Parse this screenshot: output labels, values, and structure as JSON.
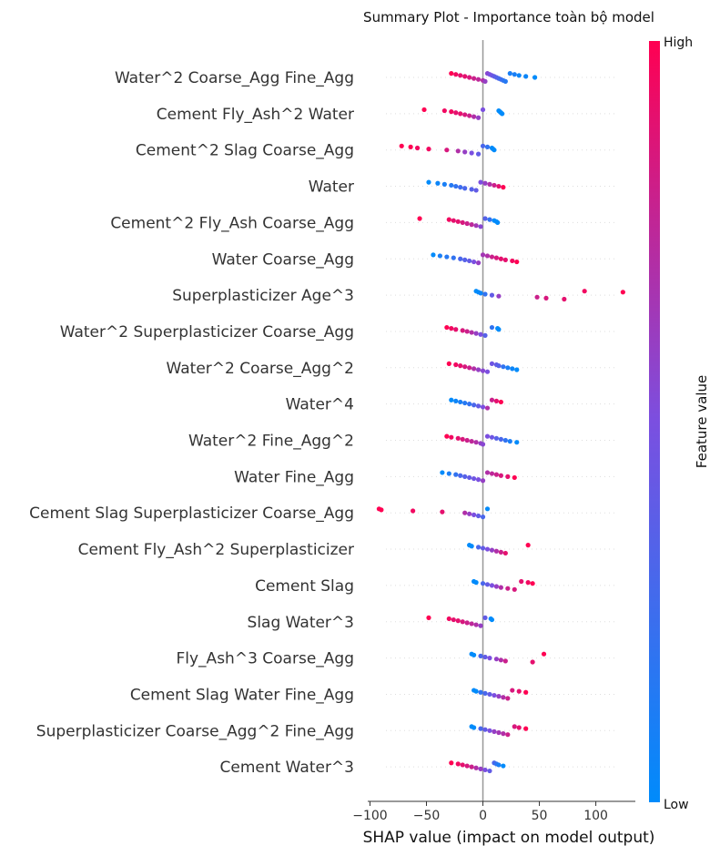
{
  "colors": {
    "high": "#ff0052",
    "low": "#008bfb",
    "mid": "#7b4fe0",
    "zero_line": "#999999",
    "axis": "#333333",
    "guide": "#dddddd"
  },
  "chart_data": {
    "type": "scatter",
    "subtype": "shap-beeswarm-summary",
    "title": "Summary Plot - Importance toàn bộ model",
    "xlabel": "SHAP value (impact on model output)",
    "xlim": [
      -102,
      135
    ],
    "xticks": [
      -100,
      -50,
      0,
      50,
      100
    ],
    "colorbar": {
      "title": "Feature value",
      "high_label": "High",
      "low_label": "Low"
    },
    "features": [
      {
        "name": "Water^2 Coarse_Agg Fine_Agg",
        "points": [
          [
            -28,
            1
          ],
          [
            -24,
            0.95
          ],
          [
            -20,
            0.9
          ],
          [
            -16,
            0.9
          ],
          [
            -12,
            0.85
          ],
          [
            -8,
            0.8
          ],
          [
            -4,
            0.75
          ],
          [
            0,
            0.7
          ],
          [
            2,
            0.6
          ],
          [
            4,
            0.55
          ],
          [
            6,
            0.5
          ],
          [
            8,
            0.45
          ],
          [
            10,
            0.4
          ],
          [
            12,
            0.35
          ],
          [
            14,
            0.3
          ],
          [
            16,
            0.25
          ],
          [
            18,
            0.2
          ],
          [
            20,
            0.15
          ],
          [
            24,
            0.1
          ],
          [
            28,
            0.1
          ],
          [
            32,
            0.05
          ],
          [
            38,
            0.05
          ],
          [
            46,
            0
          ]
        ]
      },
      {
        "name": "Cement Fly_Ash^2 Water",
        "points": [
          [
            -52,
            1
          ],
          [
            -34,
            0.95
          ],
          [
            -28,
            0.95
          ],
          [
            -24,
            0.9
          ],
          [
            -20,
            0.9
          ],
          [
            -16,
            0.85
          ],
          [
            -12,
            0.8
          ],
          [
            -8,
            0.7
          ],
          [
            -4,
            0.6
          ],
          [
            0,
            0.5
          ],
          [
            14,
            0
          ],
          [
            15,
            0
          ],
          [
            16,
            0
          ],
          [
            17,
            0
          ]
        ]
      },
      {
        "name": "Cement^2 Slag Coarse_Agg",
        "points": [
          [
            -72,
            1
          ],
          [
            -64,
            1
          ],
          [
            -58,
            0.95
          ],
          [
            -48,
            0.95
          ],
          [
            -32,
            0.85
          ],
          [
            -22,
            0.7
          ],
          [
            -16,
            0.6
          ],
          [
            -10,
            0.5
          ],
          [
            -4,
            0.4
          ],
          [
            0,
            0.3
          ],
          [
            4,
            0.2
          ],
          [
            8,
            0
          ],
          [
            9,
            0
          ],
          [
            10,
            0
          ]
        ]
      },
      {
        "name": "Water",
        "points": [
          [
            -48,
            0
          ],
          [
            -40,
            0.05
          ],
          [
            -34,
            0.1
          ],
          [
            -28,
            0.15
          ],
          [
            -24,
            0.2
          ],
          [
            -20,
            0.25
          ],
          [
            -16,
            0.3
          ],
          [
            -10,
            0.35
          ],
          [
            -6,
            0.4
          ],
          [
            -2,
            0.5
          ],
          [
            2,
            0.6
          ],
          [
            6,
            0.7
          ],
          [
            10,
            0.8
          ],
          [
            14,
            0.9
          ],
          [
            18,
            1
          ]
        ]
      },
      {
        "name": "Cement^2 Fly_Ash Coarse_Agg",
        "points": [
          [
            -56,
            1
          ],
          [
            -30,
            0.95
          ],
          [
            -26,
            0.9
          ],
          [
            -22,
            0.9
          ],
          [
            -18,
            0.85
          ],
          [
            -14,
            0.8
          ],
          [
            -10,
            0.75
          ],
          [
            -6,
            0.65
          ],
          [
            -2,
            0.55
          ],
          [
            2,
            0.35
          ],
          [
            6,
            0.2
          ],
          [
            10,
            0
          ],
          [
            12,
            0
          ],
          [
            13,
            0
          ]
        ]
      },
      {
        "name": "Water Coarse_Agg",
        "points": [
          [
            -44,
            0
          ],
          [
            -38,
            0.1
          ],
          [
            -32,
            0.15
          ],
          [
            -26,
            0.2
          ],
          [
            -20,
            0.3
          ],
          [
            -16,
            0.35
          ],
          [
            -12,
            0.4
          ],
          [
            -8,
            0.5
          ],
          [
            -4,
            0.6
          ],
          [
            0,
            0.65
          ],
          [
            4,
            0.7
          ],
          [
            8,
            0.8
          ],
          [
            12,
            0.85
          ],
          [
            16,
            0.9
          ],
          [
            20,
            0.9
          ],
          [
            26,
            0.95
          ],
          [
            30,
            1
          ]
        ]
      },
      {
        "name": "Superplasticizer Age^3",
        "points": [
          [
            -6,
            0
          ],
          [
            -4,
            0
          ],
          [
            -2,
            0.05
          ],
          [
            2,
            0.2
          ],
          [
            8,
            0.4
          ],
          [
            14,
            0.6
          ],
          [
            48,
            0.8
          ],
          [
            56,
            0.85
          ],
          [
            72,
            0.9
          ],
          [
            90,
            0.95
          ],
          [
            124,
            1
          ]
        ]
      },
      {
        "name": "Water^2 Superplasticizer Coarse_Agg",
        "points": [
          [
            -32,
            1
          ],
          [
            -28,
            0.95
          ],
          [
            -24,
            0.9
          ],
          [
            -18,
            0.85
          ],
          [
            -14,
            0.8
          ],
          [
            -10,
            0.7
          ],
          [
            -6,
            0.6
          ],
          [
            -2,
            0.5
          ],
          [
            2,
            0.35
          ],
          [
            8,
            0.2
          ],
          [
            13,
            0
          ],
          [
            14,
            0
          ]
        ]
      },
      {
        "name": "Water^2 Coarse_Agg^2",
        "points": [
          [
            -30,
            1
          ],
          [
            -24,
            0.95
          ],
          [
            -20,
            0.9
          ],
          [
            -16,
            0.85
          ],
          [
            -12,
            0.8
          ],
          [
            -8,
            0.7
          ],
          [
            -4,
            0.6
          ],
          [
            0,
            0.55
          ],
          [
            4,
            0.5
          ],
          [
            8,
            0.45
          ],
          [
            12,
            0.4
          ],
          [
            14,
            0.35
          ],
          [
            18,
            0.2
          ],
          [
            22,
            0.1
          ],
          [
            26,
            0.05
          ],
          [
            30,
            0
          ]
        ]
      },
      {
        "name": "Water^4",
        "points": [
          [
            -28,
            0
          ],
          [
            -24,
            0.05
          ],
          [
            -20,
            0.1
          ],
          [
            -16,
            0.15
          ],
          [
            -12,
            0.2
          ],
          [
            -8,
            0.3
          ],
          [
            -4,
            0.4
          ],
          [
            0,
            0.5
          ],
          [
            4,
            0.7
          ],
          [
            8,
            0.8
          ],
          [
            12,
            0.9
          ],
          [
            16,
            1
          ]
        ]
      },
      {
        "name": "Water^2 Fine_Agg^2",
        "points": [
          [
            -32,
            1
          ],
          [
            -28,
            0.95
          ],
          [
            -22,
            0.9
          ],
          [
            -18,
            0.85
          ],
          [
            -14,
            0.8
          ],
          [
            -10,
            0.75
          ],
          [
            -6,
            0.7
          ],
          [
            -2,
            0.6
          ],
          [
            0,
            0.55
          ],
          [
            4,
            0.5
          ],
          [
            8,
            0.45
          ],
          [
            12,
            0.35
          ],
          [
            16,
            0.3
          ],
          [
            20,
            0.2
          ],
          [
            24,
            0.1
          ],
          [
            30,
            0
          ]
        ]
      },
      {
        "name": "Water Fine_Agg",
        "points": [
          [
            -36,
            0
          ],
          [
            -30,
            0.1
          ],
          [
            -24,
            0.2
          ],
          [
            -20,
            0.3
          ],
          [
            -16,
            0.35
          ],
          [
            -12,
            0.4
          ],
          [
            -8,
            0.45
          ],
          [
            -4,
            0.5
          ],
          [
            0,
            0.6
          ],
          [
            4,
            0.7
          ],
          [
            8,
            0.75
          ],
          [
            12,
            0.8
          ],
          [
            16,
            0.85
          ],
          [
            22,
            0.9
          ],
          [
            28,
            1
          ]
        ]
      },
      {
        "name": "Cement Slag Superplasticizer Coarse_Agg",
        "points": [
          [
            -92,
            1
          ],
          [
            -90,
            1
          ],
          [
            -62,
            0.95
          ],
          [
            -36,
            0.9
          ],
          [
            -16,
            0.7
          ],
          [
            -12,
            0.6
          ],
          [
            -8,
            0.5
          ],
          [
            -4,
            0.4
          ],
          [
            0,
            0.3
          ],
          [
            4,
            0
          ]
        ]
      },
      {
        "name": "Cement Fly_Ash^2 Superplasticizer",
        "points": [
          [
            -12,
            0
          ],
          [
            -10,
            0
          ],
          [
            -4,
            0.3
          ],
          [
            0,
            0.4
          ],
          [
            4,
            0.5
          ],
          [
            8,
            0.6
          ],
          [
            12,
            0.7
          ],
          [
            16,
            0.8
          ],
          [
            20,
            0.9
          ],
          [
            40,
            1
          ]
        ]
      },
      {
        "name": "Cement Slag",
        "points": [
          [
            -8,
            0
          ],
          [
            -6,
            0
          ],
          [
            0,
            0.3
          ],
          [
            4,
            0.4
          ],
          [
            8,
            0.5
          ],
          [
            12,
            0.6
          ],
          [
            16,
            0.7
          ],
          [
            22,
            0.8
          ],
          [
            28,
            0.85
          ],
          [
            34,
            0.9
          ],
          [
            40,
            0.95
          ],
          [
            44,
            1
          ]
        ]
      },
      {
        "name": "Slag Water^3",
        "points": [
          [
            -48,
            1
          ],
          [
            -30,
            0.95
          ],
          [
            -26,
            0.9
          ],
          [
            -22,
            0.9
          ],
          [
            -18,
            0.85
          ],
          [
            -14,
            0.8
          ],
          [
            -10,
            0.75
          ],
          [
            -6,
            0.7
          ],
          [
            -2,
            0.6
          ],
          [
            2,
            0.4
          ],
          [
            7,
            0
          ],
          [
            8,
            0
          ]
        ]
      },
      {
        "name": "Fly_Ash^3 Coarse_Agg",
        "points": [
          [
            -10,
            0
          ],
          [
            -8,
            0
          ],
          [
            -2,
            0.3
          ],
          [
            2,
            0.4
          ],
          [
            6,
            0.5
          ],
          [
            12,
            0.6
          ],
          [
            16,
            0.7
          ],
          [
            20,
            0.8
          ],
          [
            44,
            0.9
          ],
          [
            54,
            1
          ]
        ]
      },
      {
        "name": "Cement Slag Water Fine_Agg",
        "points": [
          [
            -8,
            0
          ],
          [
            -6,
            0
          ],
          [
            -2,
            0.2
          ],
          [
            2,
            0.3
          ],
          [
            6,
            0.4
          ],
          [
            10,
            0.5
          ],
          [
            14,
            0.6
          ],
          [
            18,
            0.7
          ],
          [
            22,
            0.8
          ],
          [
            26,
            0.85
          ],
          [
            32,
            0.9
          ],
          [
            38,
            1
          ]
        ]
      },
      {
        "name": "Superplasticizer Coarse_Agg^2 Fine_Agg",
        "points": [
          [
            -10,
            0
          ],
          [
            -8,
            0
          ],
          [
            -2,
            0.3
          ],
          [
            2,
            0.4
          ],
          [
            6,
            0.5
          ],
          [
            10,
            0.6
          ],
          [
            14,
            0.65
          ],
          [
            18,
            0.7
          ],
          [
            22,
            0.8
          ],
          [
            28,
            0.85
          ],
          [
            32,
            0.9
          ],
          [
            38,
            1
          ]
        ]
      },
      {
        "name": "Cement Water^3",
        "points": [
          [
            -28,
            1
          ],
          [
            -22,
            0.95
          ],
          [
            -18,
            0.9
          ],
          [
            -14,
            0.85
          ],
          [
            -10,
            0.8
          ],
          [
            -6,
            0.7
          ],
          [
            -2,
            0.6
          ],
          [
            2,
            0.5
          ],
          [
            6,
            0.4
          ],
          [
            10,
            0.3
          ],
          [
            12,
            0.2
          ],
          [
            14,
            0.1
          ],
          [
            18,
            0
          ]
        ]
      }
    ]
  }
}
